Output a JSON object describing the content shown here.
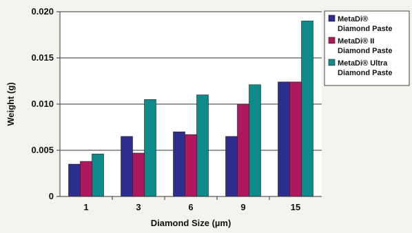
{
  "chart_data": {
    "type": "bar",
    "title": "",
    "xlabel": "Diamond Size (µm)",
    "ylabel": "Weight (g)",
    "categories": [
      "1",
      "3",
      "6",
      "9",
      "15"
    ],
    "ylim": [
      0,
      0.02
    ],
    "yticks": [
      "0",
      "0.005",
      "0.010",
      "0.015",
      "0.020"
    ],
    "grid": true,
    "legend_position": "right",
    "series": [
      {
        "name": [
          "MetaDi®",
          "Diamond Paste"
        ],
        "color": "#2e2e8f",
        "values": [
          0.0035,
          0.0065,
          0.007,
          0.0065,
          0.0124
        ]
      },
      {
        "name": [
          "MetaDi® II",
          "Diamond Paste"
        ],
        "color": "#b0175f",
        "values": [
          0.0038,
          0.0047,
          0.0067,
          0.01,
          0.0124
        ]
      },
      {
        "name": [
          "MetaDi® Ultra",
          "Diamond Paste"
        ],
        "color": "#0e8a8a",
        "values": [
          0.0046,
          0.0105,
          0.011,
          0.0121,
          0.019
        ]
      }
    ]
  }
}
